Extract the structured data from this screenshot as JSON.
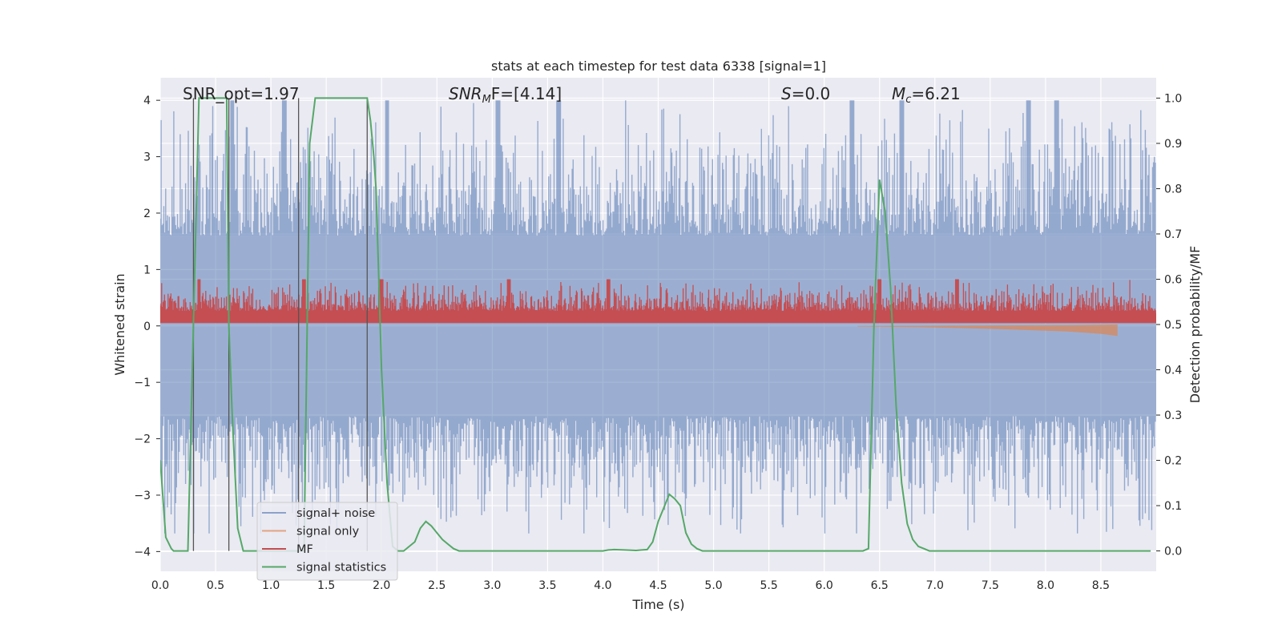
{
  "chart_data": {
    "type": "line",
    "title": "stats at each timestep for test data 6338 [signal=1]",
    "xlabel": "Time (s)",
    "ylabel_left": "Whitened strain",
    "ylabel_right": "Detection probability/MF",
    "xlim": [
      0.0,
      9.0
    ],
    "ylim_left": [
      -4.35,
      4.4
    ],
    "ylim_right": [
      -0.045,
      1.045
    ],
    "xticks": [
      "0.0",
      "0.5",
      "1.0",
      "1.5",
      "2.0",
      "2.5",
      "3.0",
      "3.5",
      "4.0",
      "4.5",
      "5.0",
      "5.5",
      "6.0",
      "6.5",
      "7.0",
      "7.5",
      "8.0",
      "8.5"
    ],
    "yticks_left": [
      "−4",
      "−3",
      "−2",
      "−1",
      "0",
      "1",
      "2",
      "3",
      "4"
    ],
    "yticks_right": [
      "0.0",
      "0.1",
      "0.2",
      "0.3",
      "0.4",
      "0.5",
      "0.6",
      "0.7",
      "0.8",
      "0.9",
      "1.0"
    ],
    "grid": true,
    "legend_placement": "lower-left",
    "annotations": {
      "snr_opt": "SNR_opt=1.97",
      "snr_mf": "SNR",
      "snr_mf_sub": "M",
      "snr_mf_rest": "F=[4.14]",
      "s_label": "S",
      "s_value": "=0.0",
      "mc_label": "M",
      "mc_sub": "c",
      "mc_value": "=6.21"
    },
    "colors": {
      "background": "#eaeaf2",
      "grid": "#ffffff",
      "signal_noise": "#4c72b0",
      "signal_only": "#dd8452",
      "mf": "#c44e52",
      "signal_statistics": "#55a868",
      "vlines": "#555555"
    },
    "series": [
      {
        "name": "signal+ noise",
        "kind": "noise-band",
        "axis": "left",
        "envelope_inner": 1.6,
        "envelope_peak": 4.0,
        "peak_x": [
          0.65,
          1.12,
          2.05,
          3.05,
          3.6,
          6.25,
          6.7,
          7.85,
          8.1
        ]
      },
      {
        "name": "signal only",
        "kind": "chirp",
        "axis": "left",
        "x": [
          6.3,
          6.8,
          7.3,
          7.8,
          8.2,
          8.5,
          8.65
        ],
        "amplitude": [
          0.01,
          0.02,
          0.04,
          0.07,
          0.1,
          0.14,
          0.18
        ]
      },
      {
        "name": "MF",
        "kind": "noise-band",
        "axis": "right",
        "baseline": 0.5,
        "envelope_inner": 0.53,
        "envelope_peak": 0.6,
        "peak_x": [
          0.35,
          1.3,
          2.0,
          3.15,
          4.05,
          6.5,
          7.2
        ]
      },
      {
        "name": "signal statistics",
        "kind": "line",
        "axis": "right",
        "x": [
          0.0,
          0.05,
          0.1,
          0.12,
          0.15,
          0.2,
          0.25,
          0.3,
          0.35,
          0.38,
          0.4,
          0.45,
          0.5,
          0.55,
          0.6,
          0.62,
          0.65,
          0.7,
          0.75,
          0.8,
          0.85,
          0.9,
          1.0,
          1.1,
          1.2,
          1.3,
          1.35,
          1.4,
          1.5,
          1.6,
          1.7,
          1.8,
          1.87,
          1.9,
          1.93,
          1.95,
          2.0,
          2.05,
          2.1,
          2.15,
          2.2,
          2.25,
          2.3,
          2.35,
          2.4,
          2.45,
          2.5,
          2.55,
          2.6,
          2.65,
          2.7,
          2.8,
          3.0,
          3.5,
          4.0,
          4.05,
          4.1,
          4.2,
          4.3,
          4.35,
          4.4,
          4.45,
          4.5,
          4.55,
          4.6,
          4.65,
          4.7,
          4.75,
          4.8,
          4.85,
          4.9,
          5.0,
          5.5,
          6.0,
          6.35,
          6.4,
          6.45,
          6.5,
          6.55,
          6.6,
          6.65,
          6.7,
          6.75,
          6.8,
          6.85,
          6.9,
          6.95,
          7.0,
          7.1,
          7.5,
          8.0,
          8.5,
          8.95
        ],
        "y": [
          0.2,
          0.03,
          0.005,
          0.0,
          0.0,
          0.0,
          0.0,
          0.5,
          1.0,
          1.0,
          1.0,
          1.0,
          1.0,
          1.0,
          1.0,
          0.5,
          0.3,
          0.05,
          0.0,
          0.0,
          0.0,
          0.0,
          0.0,
          0.0,
          0.0,
          0.0,
          0.9,
          1.0,
          1.0,
          1.0,
          1.0,
          1.0,
          1.0,
          0.95,
          0.87,
          0.8,
          0.4,
          0.15,
          0.01,
          0.0,
          0.0,
          0.01,
          0.02,
          0.05,
          0.065,
          0.055,
          0.04,
          0.025,
          0.015,
          0.005,
          0.0,
          0.0,
          0.0,
          0.0,
          0.0,
          0.002,
          0.003,
          0.002,
          0.001,
          0.002,
          0.003,
          0.02,
          0.065,
          0.095,
          0.125,
          0.115,
          0.1,
          0.04,
          0.015,
          0.005,
          0.0,
          0.0,
          0.0,
          0.0,
          0.0,
          0.005,
          0.5,
          0.82,
          0.75,
          0.58,
          0.32,
          0.15,
          0.06,
          0.025,
          0.01,
          0.005,
          0.0,
          0.0,
          0.0,
          0.0,
          0.0,
          0.0,
          0.0
        ]
      }
    ],
    "vertical_lines_x": [
      0.3,
      0.62,
      1.25,
      1.87
    ],
    "legend": [
      {
        "label": "signal+ noise",
        "color_key": "signal_noise"
      },
      {
        "label": "signal only",
        "color_key": "signal_only"
      },
      {
        "label": "MF",
        "color_key": "mf"
      },
      {
        "label": "signal statistics",
        "color_key": "signal_statistics"
      }
    ]
  }
}
